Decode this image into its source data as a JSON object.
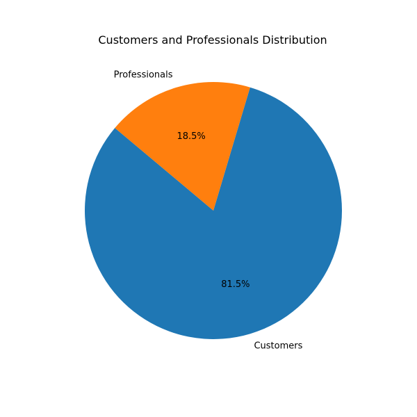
{
  "chart_data": {
    "type": "pie",
    "title": "Customers and Professionals Distribution",
    "slices": [
      {
        "label": "Customers",
        "value": 81.5,
        "pct_label": "81.5%",
        "color": "#1f77b4"
      },
      {
        "label": "Professionals",
        "value": 18.5,
        "pct_label": "18.5%",
        "color": "#ff7f0e"
      }
    ],
    "start_angle_deg": 140,
    "direction": "counterclockwise"
  }
}
